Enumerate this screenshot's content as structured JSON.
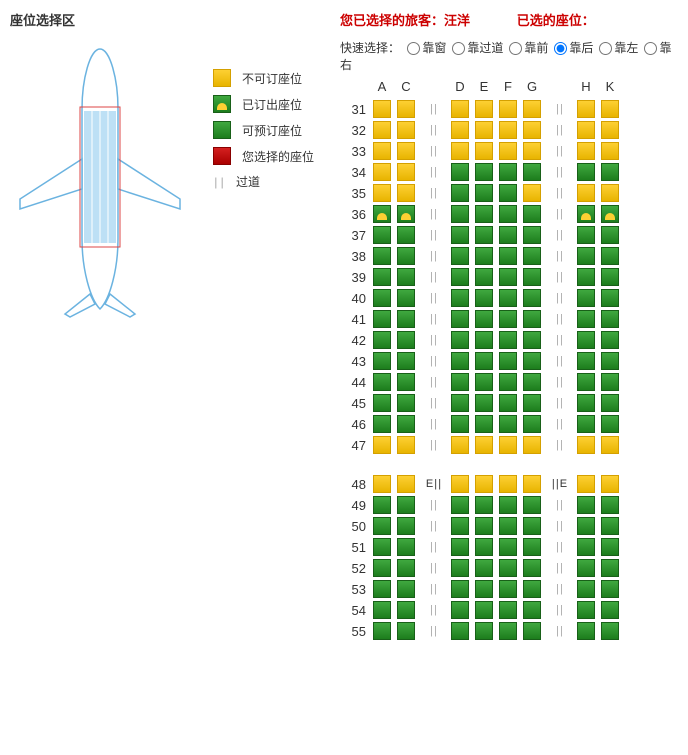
{
  "title": "座位选择区",
  "passengerPrefix": "您已选择的旅客：",
  "passengerName": "汪洋",
  "selectedSeatLabel": "已选的座位：",
  "quickSelectLabel": "快速选择：",
  "quickOptions": [
    "靠窗",
    "靠过道",
    "靠前",
    "靠后",
    "靠左",
    "靠右"
  ],
  "quickSelected": 3,
  "columns": {
    "left": [
      "A",
      "C"
    ],
    "mid": [
      "D",
      "E",
      "F",
      "G"
    ],
    "right": [
      "H",
      "K"
    ]
  },
  "aisleGlyph": "| |",
  "legend": {
    "unavailable": "不可订座位",
    "booked": "已订出座位",
    "available": "可预订座位",
    "selected": "您选择的座位",
    "aisle": "过道"
  },
  "exitLabel": "E",
  "sections": [
    {
      "rows": [
        {
          "n": 31,
          "l": [
            "u",
            "u"
          ],
          "m": [
            "u",
            "u",
            "u",
            "u"
          ],
          "r": [
            "u",
            "u"
          ]
        },
        {
          "n": 32,
          "l": [
            "u",
            "u"
          ],
          "m": [
            "u",
            "u",
            "u",
            "u"
          ],
          "r": [
            "u",
            "u"
          ]
        },
        {
          "n": 33,
          "l": [
            "u",
            "u"
          ],
          "m": [
            "u",
            "u",
            "u",
            "u"
          ],
          "r": [
            "u",
            "u"
          ]
        },
        {
          "n": 34,
          "l": [
            "u",
            "u"
          ],
          "m": [
            "a",
            "a",
            "a",
            "a"
          ],
          "r": [
            "a",
            "a"
          ]
        },
        {
          "n": 35,
          "l": [
            "u",
            "u"
          ],
          "m": [
            "a",
            "a",
            "a",
            "u"
          ],
          "r": [
            "u",
            "u"
          ]
        },
        {
          "n": 36,
          "l": [
            "b",
            "b"
          ],
          "m": [
            "a",
            "a",
            "a",
            "a"
          ],
          "r": [
            "b",
            "b"
          ]
        },
        {
          "n": 37,
          "l": [
            "a",
            "a"
          ],
          "m": [
            "a",
            "a",
            "a",
            "a"
          ],
          "r": [
            "a",
            "a"
          ]
        },
        {
          "n": 38,
          "l": [
            "a",
            "a"
          ],
          "m": [
            "a",
            "a",
            "a",
            "a"
          ],
          "r": [
            "a",
            "a"
          ]
        },
        {
          "n": 39,
          "l": [
            "a",
            "a"
          ],
          "m": [
            "a",
            "a",
            "a",
            "a"
          ],
          "r": [
            "a",
            "a"
          ]
        },
        {
          "n": 40,
          "l": [
            "a",
            "a"
          ],
          "m": [
            "a",
            "a",
            "a",
            "a"
          ],
          "r": [
            "a",
            "a"
          ]
        },
        {
          "n": 41,
          "l": [
            "a",
            "a"
          ],
          "m": [
            "a",
            "a",
            "a",
            "a"
          ],
          "r": [
            "a",
            "a"
          ]
        },
        {
          "n": 42,
          "l": [
            "a",
            "a"
          ],
          "m": [
            "a",
            "a",
            "a",
            "a"
          ],
          "r": [
            "a",
            "a"
          ]
        },
        {
          "n": 43,
          "l": [
            "a",
            "a"
          ],
          "m": [
            "a",
            "a",
            "a",
            "a"
          ],
          "r": [
            "a",
            "a"
          ]
        },
        {
          "n": 44,
          "l": [
            "a",
            "a"
          ],
          "m": [
            "a",
            "a",
            "a",
            "a"
          ],
          "r": [
            "a",
            "a"
          ]
        },
        {
          "n": 45,
          "l": [
            "a",
            "a"
          ],
          "m": [
            "a",
            "a",
            "a",
            "a"
          ],
          "r": [
            "a",
            "a"
          ]
        },
        {
          "n": 46,
          "l": [
            "a",
            "a"
          ],
          "m": [
            "a",
            "a",
            "a",
            "a"
          ],
          "r": [
            "a",
            "a"
          ]
        },
        {
          "n": 47,
          "l": [
            "u",
            "u"
          ],
          "m": [
            "u",
            "u",
            "u",
            "u"
          ],
          "r": [
            "u",
            "u"
          ]
        }
      ]
    },
    {
      "rows": [
        {
          "n": 48,
          "l": [
            "u",
            "u"
          ],
          "exitL": true,
          "m": [
            "u",
            "u",
            "u",
            "u"
          ],
          "exitR": true,
          "r": [
            "u",
            "u"
          ]
        },
        {
          "n": 49,
          "l": [
            "a",
            "a"
          ],
          "m": [
            "a",
            "a",
            "a",
            "a"
          ],
          "r": [
            "a",
            "a"
          ]
        },
        {
          "n": 50,
          "l": [
            "a",
            "a"
          ],
          "m": [
            "a",
            "a",
            "a",
            "a"
          ],
          "r": [
            "a",
            "a"
          ]
        },
        {
          "n": 51,
          "l": [
            "a",
            "a"
          ],
          "m": [
            "a",
            "a",
            "a",
            "a"
          ],
          "r": [
            "a",
            "a"
          ]
        },
        {
          "n": 52,
          "l": [
            "a",
            "a"
          ],
          "m": [
            "a",
            "a",
            "a",
            "a"
          ],
          "r": [
            "a",
            "a"
          ]
        },
        {
          "n": 53,
          "l": [
            "a",
            "a"
          ],
          "m": [
            "a",
            "a",
            "a",
            "a"
          ],
          "r": [
            "a",
            "a"
          ]
        },
        {
          "n": 54,
          "l": [
            "a",
            "a"
          ],
          "m": [
            "a",
            "a",
            "a",
            "a"
          ],
          "r": [
            "a",
            "a"
          ]
        },
        {
          "n": 55,
          "l": [
            "a",
            "a"
          ],
          "m": [
            "a",
            "a",
            "a",
            "a"
          ],
          "r": [
            "a",
            "a"
          ]
        }
      ]
    }
  ],
  "colors": {
    "unavailable": "#f0c420",
    "available": "#2c8a2c",
    "selected": "#c01818",
    "aisleText": "#aaaaaa",
    "red": "#cc0000"
  }
}
